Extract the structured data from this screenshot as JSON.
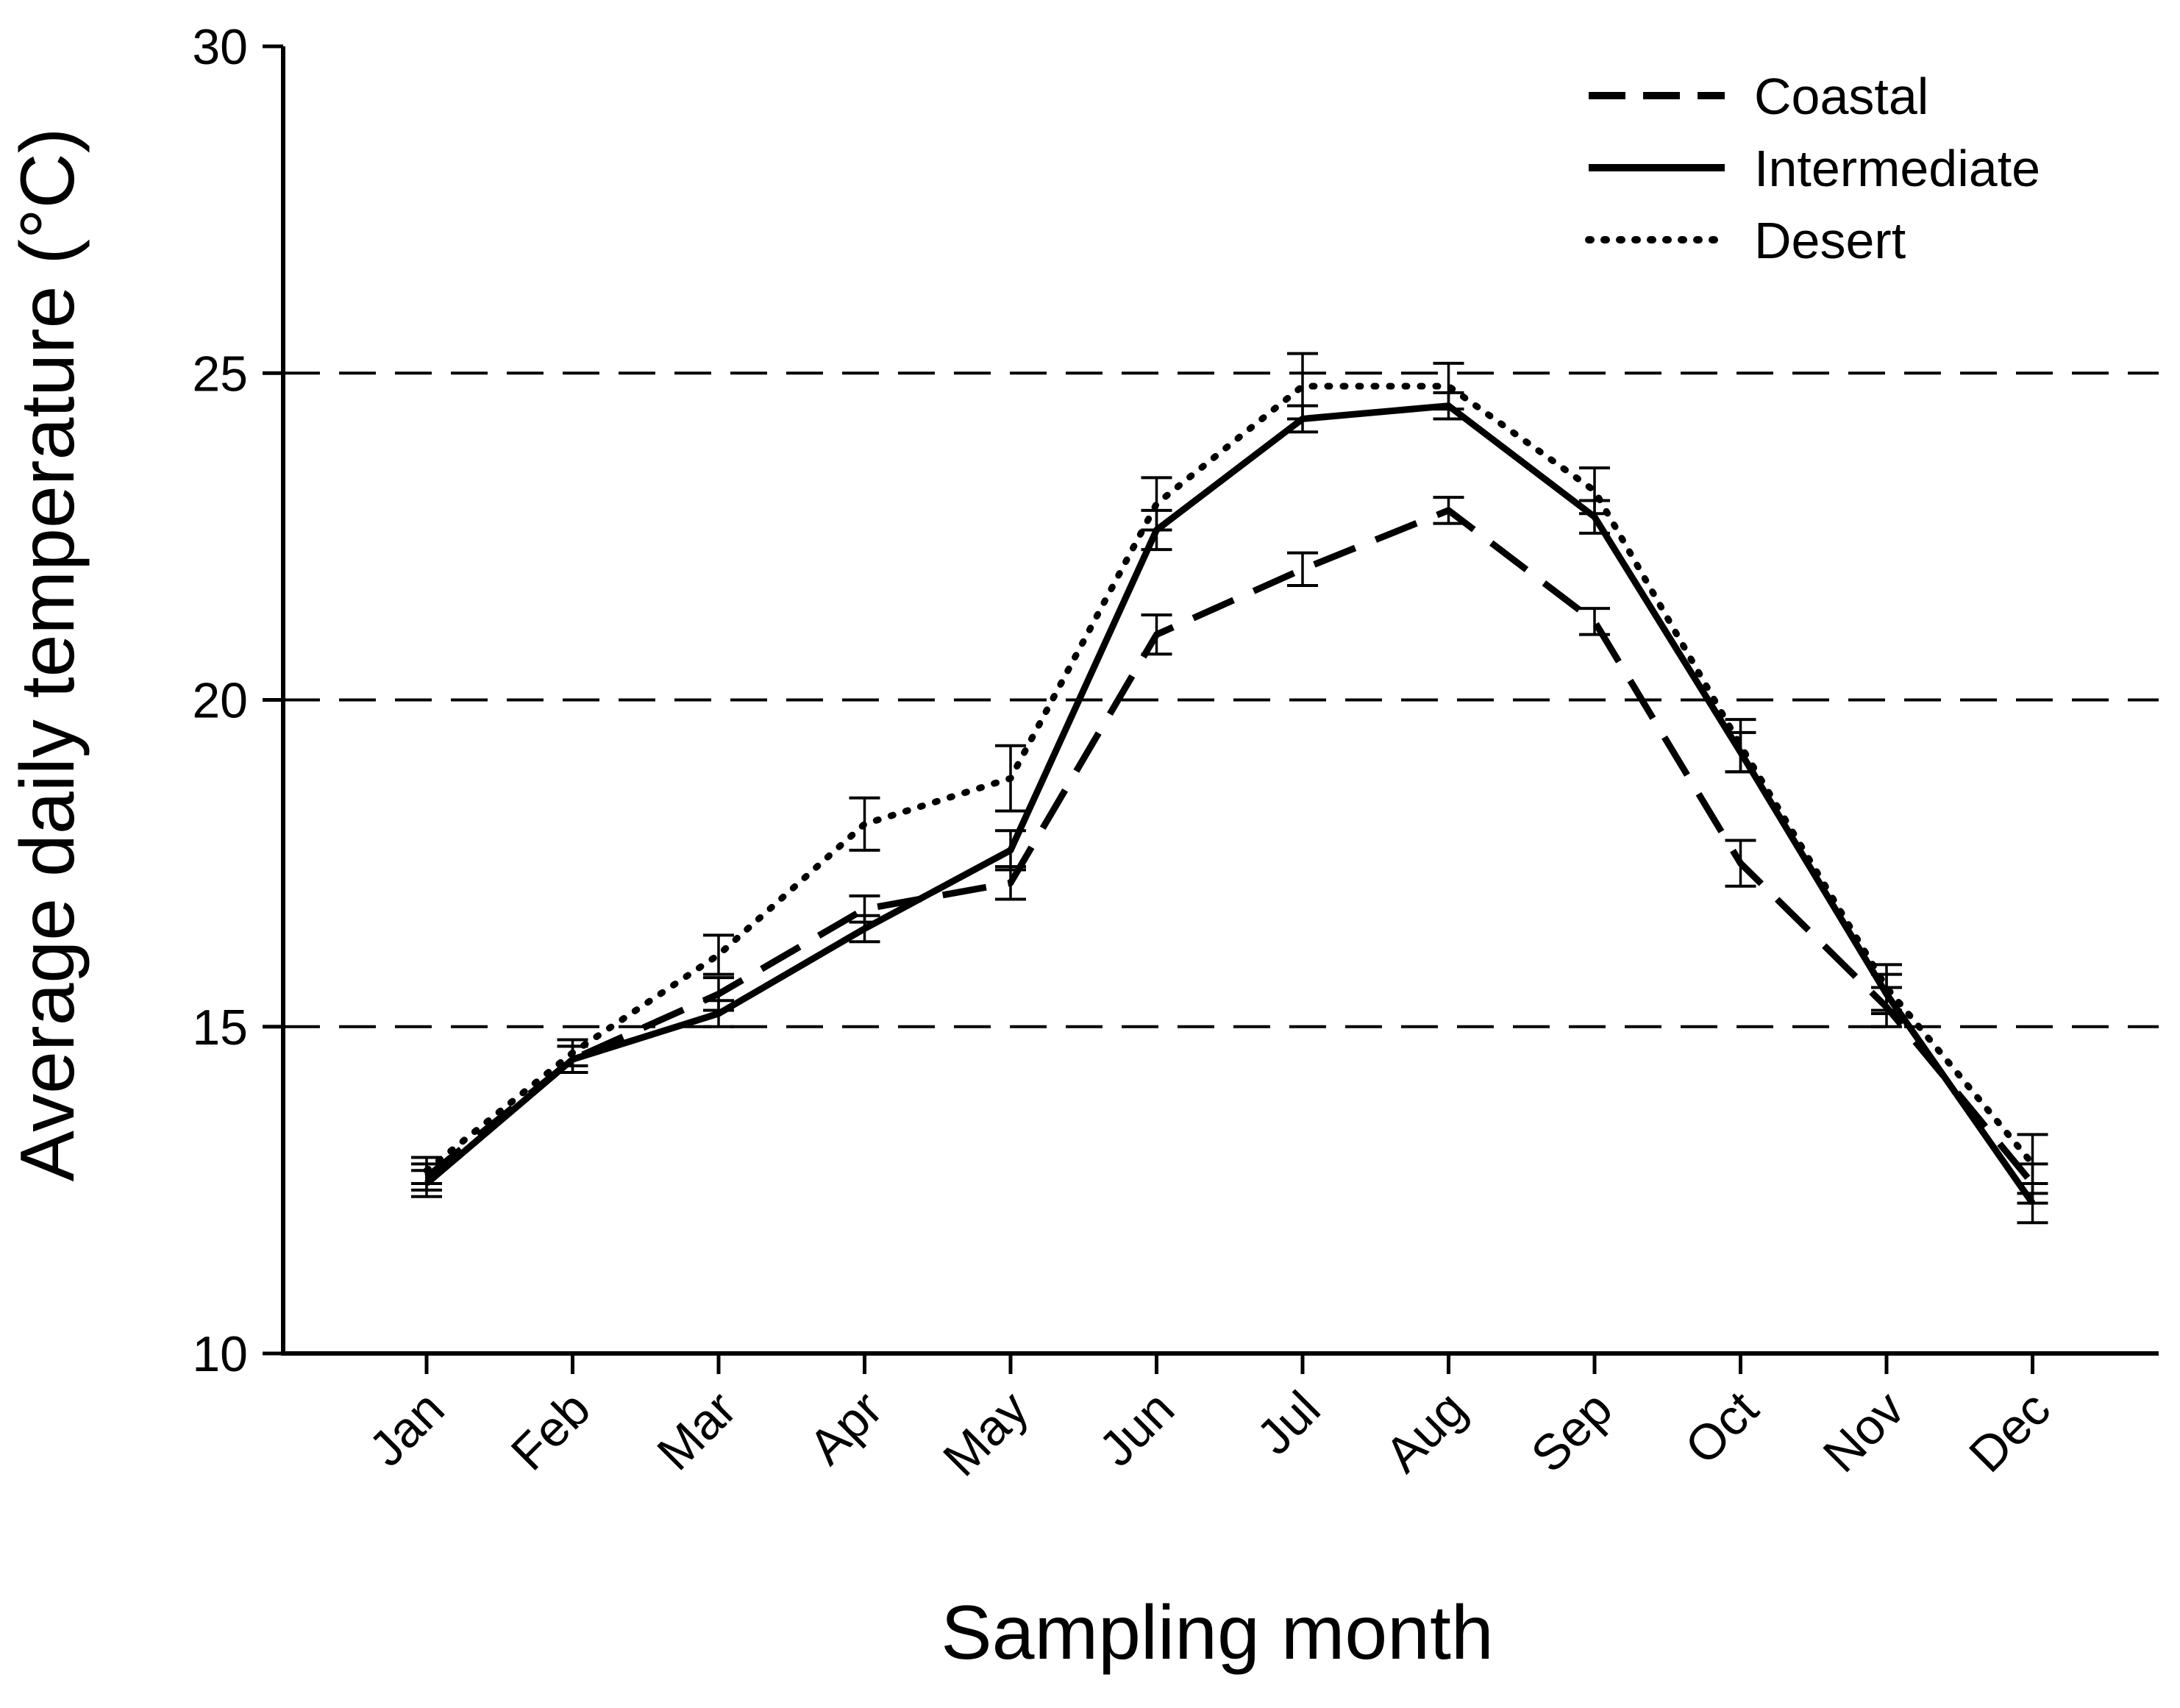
{
  "chart_data": {
    "type": "line",
    "title": "",
    "xlabel": "Sampling month",
    "ylabel": "Average daily temperature (°C)",
    "ylim": [
      10,
      30
    ],
    "yticks": [
      10,
      15,
      20,
      25,
      30
    ],
    "reference_lines": [
      15,
      20,
      25
    ],
    "categories": [
      "Jan",
      "Feb",
      "Mar",
      "Apr",
      "May",
      "Jun",
      "Jul",
      "Aug",
      "Sep",
      "Oct",
      "Nov",
      "Dec"
    ],
    "legend_position": "top-right",
    "series": [
      {
        "name": "Coastal",
        "style": "dashed",
        "values": [
          12.7,
          14.5,
          15.5,
          16.8,
          17.2,
          21.0,
          22.0,
          22.9,
          21.2,
          17.5,
          15.3,
          12.6
        ],
        "errors": [
          0.2,
          0.2,
          0.25,
          0.2,
          0.25,
          0.3,
          0.25,
          0.2,
          0.2,
          0.35,
          0.3,
          0.3
        ]
      },
      {
        "name": "Intermediate",
        "style": "solid",
        "values": [
          12.6,
          14.5,
          15.2,
          16.5,
          17.7,
          22.6,
          24.3,
          24.5,
          22.8,
          19.2,
          15.5,
          12.3
        ],
        "errors": [
          0.2,
          0.2,
          0.2,
          0.2,
          0.3,
          0.3,
          0.2,
          0.2,
          0.25,
          0.3,
          0.3,
          0.3
        ]
      },
      {
        "name": "Desert",
        "style": "dotted",
        "values": [
          12.8,
          14.6,
          16.1,
          18.1,
          18.8,
          23.0,
          24.8,
          24.8,
          23.2,
          19.3,
          15.6,
          12.9
        ],
        "errors": [
          0.2,
          0.2,
          0.3,
          0.4,
          0.5,
          0.4,
          0.5,
          0.35,
          0.35,
          0.4,
          0.35,
          0.45
        ]
      }
    ]
  }
}
